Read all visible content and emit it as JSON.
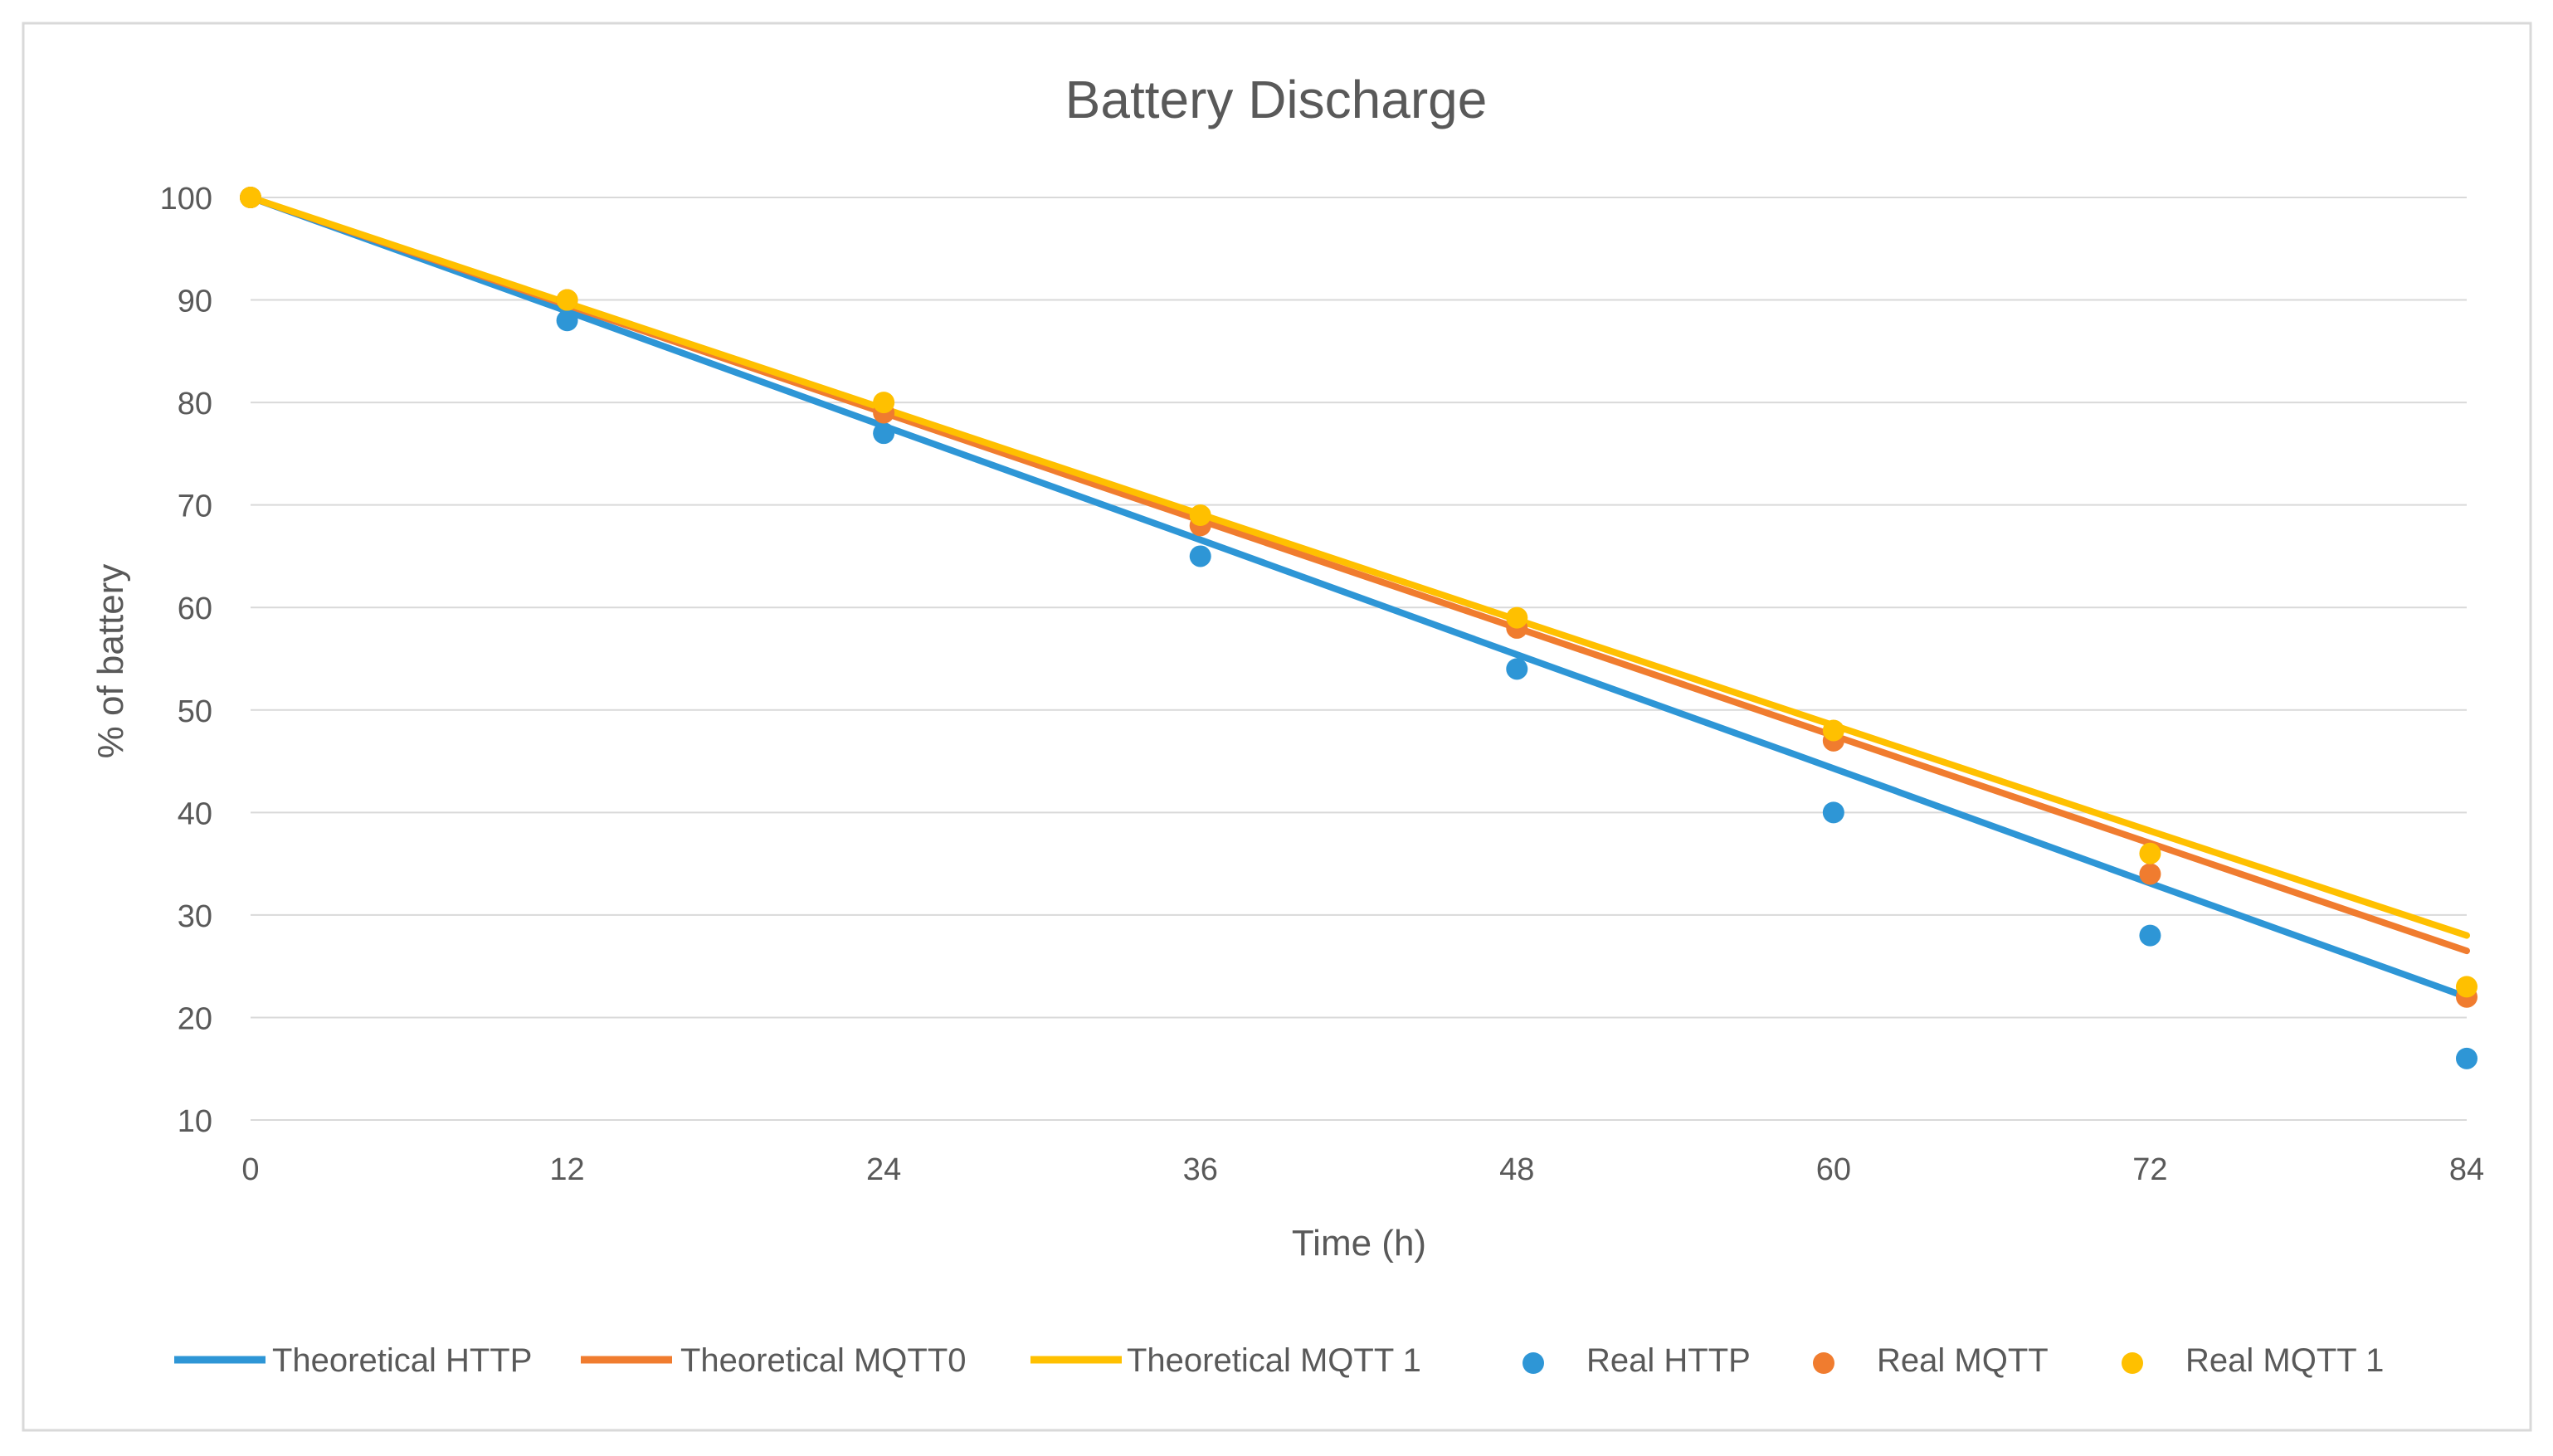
{
  "chart_data": {
    "type": "line",
    "title": "Battery Discharge",
    "xlabel": "Time (h)",
    "ylabel": "% of battery",
    "x": [
      0,
      12,
      24,
      36,
      48,
      60,
      72,
      84
    ],
    "xlim": [
      0,
      84
    ],
    "ylim": [
      10,
      100
    ],
    "x_ticks": [
      "0",
      "12",
      "24",
      "36",
      "48",
      "60",
      "72",
      "84"
    ],
    "y_ticks": [
      "10",
      "20",
      "30",
      "40",
      "50",
      "60",
      "70",
      "80",
      "90",
      "100"
    ],
    "grid": "horizontal",
    "legend_position": "bottom",
    "series": [
      {
        "name": "Theoretical HTTP",
        "kind": "line",
        "color": "#2E96D6",
        "values": [
          100,
          88.9,
          77.7,
          66.6,
          55.4,
          44.3,
          33.1,
          22
        ]
      },
      {
        "name": "Theoretical MQTT0",
        "kind": "line",
        "color": "#F07C2F",
        "values": [
          100,
          89.5,
          79,
          68.5,
          58,
          47.5,
          37,
          26.5
        ]
      },
      {
        "name": "Theoretical MQTT 1",
        "kind": "line",
        "color": "#FFC000",
        "values": [
          100,
          89.7,
          79.4,
          69.1,
          58.8,
          48.5,
          38.2,
          28
        ]
      },
      {
        "name": "Real HTTP",
        "kind": "scatter",
        "color": "#2E96D6",
        "values": [
          100,
          88,
          77,
          65,
          54,
          40,
          28,
          16
        ]
      },
      {
        "name": "Real MQTT",
        "kind": "scatter",
        "color": "#F07C2F",
        "values": [
          100,
          90,
          79,
          68,
          58,
          47,
          34,
          22
        ]
      },
      {
        "name": "Real MQTT 1",
        "kind": "scatter",
        "color": "#FFC000",
        "values": [
          100,
          90,
          80,
          69,
          59,
          48,
          36,
          23
        ]
      }
    ]
  }
}
